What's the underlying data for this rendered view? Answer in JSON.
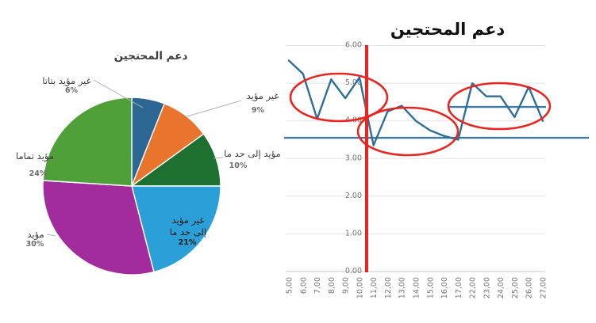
{
  "chart_data": [
    {
      "type": "pie",
      "title": "دعم المحتجين",
      "labels": [
        "غير مؤيد بتاتا",
        "غير مؤيد",
        "مؤيد إلى حد ما",
        "غير مؤيد إلى حد ما",
        "مؤيد",
        "مؤيد تماما"
      ],
      "values": [
        6,
        9,
        10,
        21,
        30,
        24
      ],
      "percent_labels": [
        "6%",
        "9%",
        "10%",
        "21%",
        "30%",
        "24%"
      ],
      "colors": [
        "#2b6792",
        "#e8742d",
        "#1d7030",
        "#2ba0d8",
        "#a22b9d",
        "#4fa038"
      ],
      "start_angle": "12 o'clock, clockwise",
      "label_layout": "outside labels with gray leader lines; the 21% slice is labeled inside the slice"
    },
    {
      "type": "line",
      "title": "دعم المحتجين",
      "x": [
        "5,00",
        "6,00",
        "7,00",
        "8,00",
        "9,00",
        "10,00",
        "11,00",
        "12,00",
        "13,00",
        "14,00",
        "15,00",
        "16,00",
        "17,00",
        "22,00",
        "23,00",
        "24,00",
        "25,00",
        "26,00",
        "27,00"
      ],
      "series": [
        {
          "name": "دعم المحتجين",
          "values": [
            5.6,
            5.25,
            4.05,
            5.1,
            4.6,
            5.15,
            3.35,
            4.25,
            4.4,
            4.0,
            3.75,
            3.6,
            3.5,
            5.0,
            4.65,
            4.65,
            4.1,
            4.9,
            4.0
          ]
        }
      ],
      "ylim": [
        0,
        6
      ],
      "y_ticks": [
        "6.00",
        "5.00",
        "4.00",
        "3.00",
        "2.00",
        "1.00",
        "0.00"
      ],
      "grid": "horizontal gridlines only",
      "line_color": "#2f6e99",
      "reference_line_color": "#3d7aa5",
      "annotation_color": "#e8251e",
      "annotations": {
        "vertical_line": {
          "between": [
            "10,00",
            "11,00"
          ],
          "color": "#e8251e"
        },
        "reference_lines": [
          {
            "value": 3.55,
            "extent": "full plot width"
          },
          {
            "value": 4.37,
            "extent": "right section under third circled group"
          }
        ],
        "circled_groups": [
          {
            "covers": "6,00–10,00"
          },
          {
            "covers": "11,00–17,00"
          },
          {
            "covers": "22,00–27,00"
          }
        ]
      }
    }
  ]
}
